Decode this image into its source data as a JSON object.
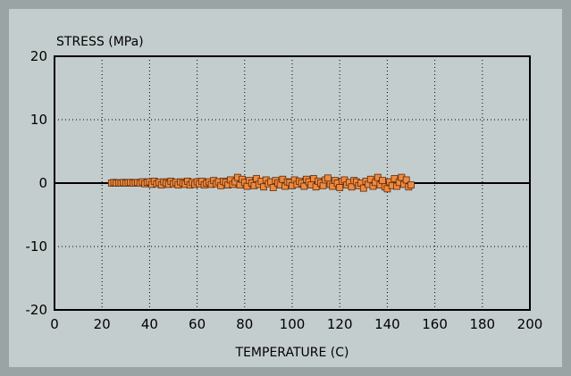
{
  "chart_data": {
    "type": "scatter",
    "title": "",
    "xlabel": "TEMPERATURE (C)",
    "ylabel": "STRESS (MPa)",
    "xlim": [
      0,
      200
    ],
    "ylim": [
      -20,
      20
    ],
    "x_ticks": [
      "0",
      "20",
      "40",
      "60",
      "80",
      "100",
      "120",
      "140",
      "160",
      "180",
      "200"
    ],
    "y_ticks": [
      "20",
      "10",
      "0",
      "-10",
      "-20"
    ],
    "grid": true,
    "marker_color": "#f08a3c",
    "marker_edge_color": "#5a2a10",
    "series": [
      {
        "x": [
          24,
          25,
          26,
          27,
          28,
          29,
          30,
          31,
          32,
          33,
          34,
          35,
          36,
          37,
          38,
          39,
          40,
          41,
          42,
          43,
          44,
          45,
          46,
          47,
          48,
          49,
          50,
          51,
          52,
          53,
          54,
          55,
          56,
          57,
          58,
          59,
          60,
          61,
          62,
          63,
          64,
          65,
          66,
          67,
          68,
          69,
          70,
          71,
          72,
          73,
          74,
          75,
          76,
          77,
          78,
          79,
          80,
          81,
          82,
          83,
          84,
          85,
          86,
          87,
          88,
          89,
          90,
          91,
          92,
          93,
          94,
          95,
          96,
          97,
          98,
          99,
          100,
          101,
          102,
          103,
          104,
          105,
          106,
          107,
          108,
          109,
          110,
          111,
          112,
          113,
          114,
          115,
          116,
          117,
          118,
          119,
          120,
          121,
          122,
          123,
          124,
          125,
          126,
          127,
          128,
          129,
          130,
          131,
          132,
          133,
          134,
          135,
          136,
          137,
          138,
          139,
          140,
          141,
          142,
          143,
          144,
          145,
          146,
          147,
          148,
          149,
          150
        ],
        "y": [
          0.0,
          0.1,
          0.0,
          0.05,
          0.0,
          0.1,
          0.0,
          0.05,
          0.1,
          0.0,
          0.05,
          0.1,
          0.0,
          0.2,
          -0.1,
          0.1,
          0.2,
          -0.2,
          0.3,
          -0.1,
          0.1,
          -0.3,
          0.2,
          0.0,
          -0.2,
          0.3,
          -0.1,
          0.1,
          -0.3,
          0.2,
          0.0,
          -0.2,
          0.3,
          -0.3,
          0.1,
          -0.2,
          0.2,
          -0.1,
          0.3,
          -0.3,
          0.0,
          0.2,
          -0.2,
          0.4,
          -0.1,
          0.2,
          -0.4,
          0.3,
          0.1,
          -0.3,
          0.5,
          -0.2,
          0.2,
          0.9,
          -0.3,
          0.6,
          0.1,
          -0.5,
          0.4,
          0.0,
          -0.4,
          0.7,
          -0.2,
          0.3,
          -0.6,
          0.5,
          -0.1,
          0.2,
          -0.7,
          0.4,
          0.0,
          -0.3,
          0.6,
          -0.5,
          0.2,
          0.1,
          -0.4,
          0.5,
          -0.2,
          0.3,
          0.0,
          -0.5,
          0.6,
          0.2,
          -0.3,
          0.7,
          -0.6,
          0.3,
          0.0,
          -0.4,
          0.5,
          0.8,
          -0.2,
          -0.5,
          0.4,
          0.0,
          -0.7,
          0.3,
          0.5,
          -0.3,
          0.1,
          -0.6,
          0.4,
          0.2,
          -0.4,
          0.0,
          -0.8,
          0.3,
          -0.2,
          0.6,
          -0.5,
          0.1,
          0.9,
          -0.3,
          0.4,
          -0.6,
          -0.9,
          0.2,
          -0.4,
          0.7,
          -0.5,
          0.1,
          0.9,
          -0.2,
          0.5,
          -0.6,
          -0.3
        ]
      }
    ]
  }
}
